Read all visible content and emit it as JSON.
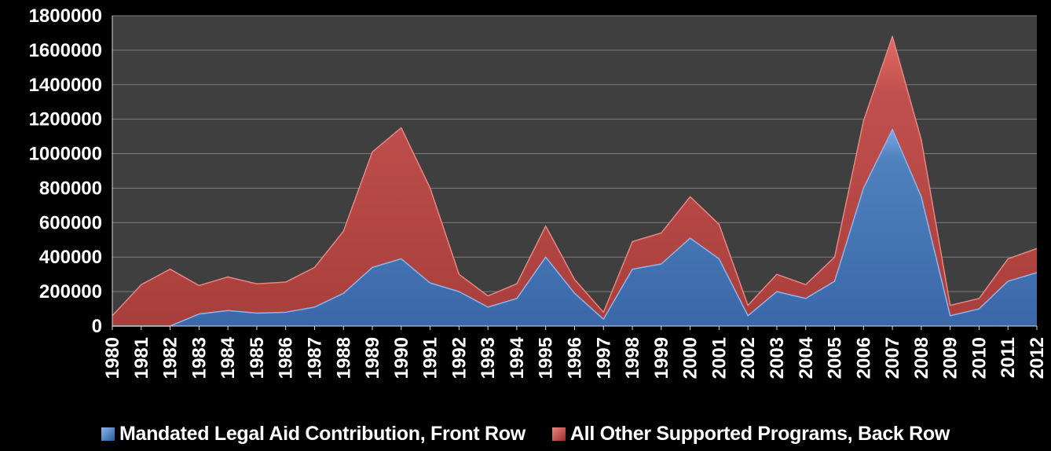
{
  "chart_data": {
    "type": "area",
    "title": "",
    "xlabel": "",
    "ylabel": "",
    "ylim": [
      0,
      1800000
    ],
    "y_ticks": [
      "0",
      "200000",
      "400000",
      "600000",
      "800000",
      "1000000",
      "1200000",
      "1400000",
      "1600000",
      "1800000"
    ],
    "categories": [
      "1980",
      "1981",
      "1982",
      "1983",
      "1984",
      "1985",
      "1986",
      "1987",
      "1988",
      "1989",
      "1990",
      "1991",
      "1992",
      "1993",
      "1994",
      "1995",
      "1996",
      "1997",
      "1998",
      "1999",
      "2000",
      "2001",
      "2002",
      "2003",
      "2004",
      "2005",
      "2006",
      "2007",
      "2008",
      "2009",
      "2010",
      "2011",
      "2012"
    ],
    "grid": true,
    "legend_position": "bottom",
    "series": [
      {
        "name": "Mandated Legal Aid Contribution, Front Row",
        "color": "#4f81bd",
        "values": [
          0,
          0,
          0,
          70000,
          90000,
          75000,
          80000,
          110000,
          190000,
          340000,
          390000,
          250000,
          200000,
          110000,
          160000,
          400000,
          190000,
          40000,
          330000,
          360000,
          510000,
          390000,
          60000,
          200000,
          160000,
          260000,
          800000,
          1140000,
          750000,
          60000,
          100000,
          260000,
          310000
        ]
      },
      {
        "name": "All Other Supported Programs, Back Row",
        "color": "#c0504d",
        "values": [
          60000,
          240000,
          330000,
          235000,
          285000,
          245000,
          255000,
          340000,
          550000,
          1010000,
          1150000,
          800000,
          300000,
          175000,
          245000,
          580000,
          270000,
          80000,
          490000,
          540000,
          750000,
          590000,
          120000,
          300000,
          240000,
          400000,
          1190000,
          1680000,
          1080000,
          120000,
          160000,
          390000,
          450000
        ]
      }
    ]
  }
}
